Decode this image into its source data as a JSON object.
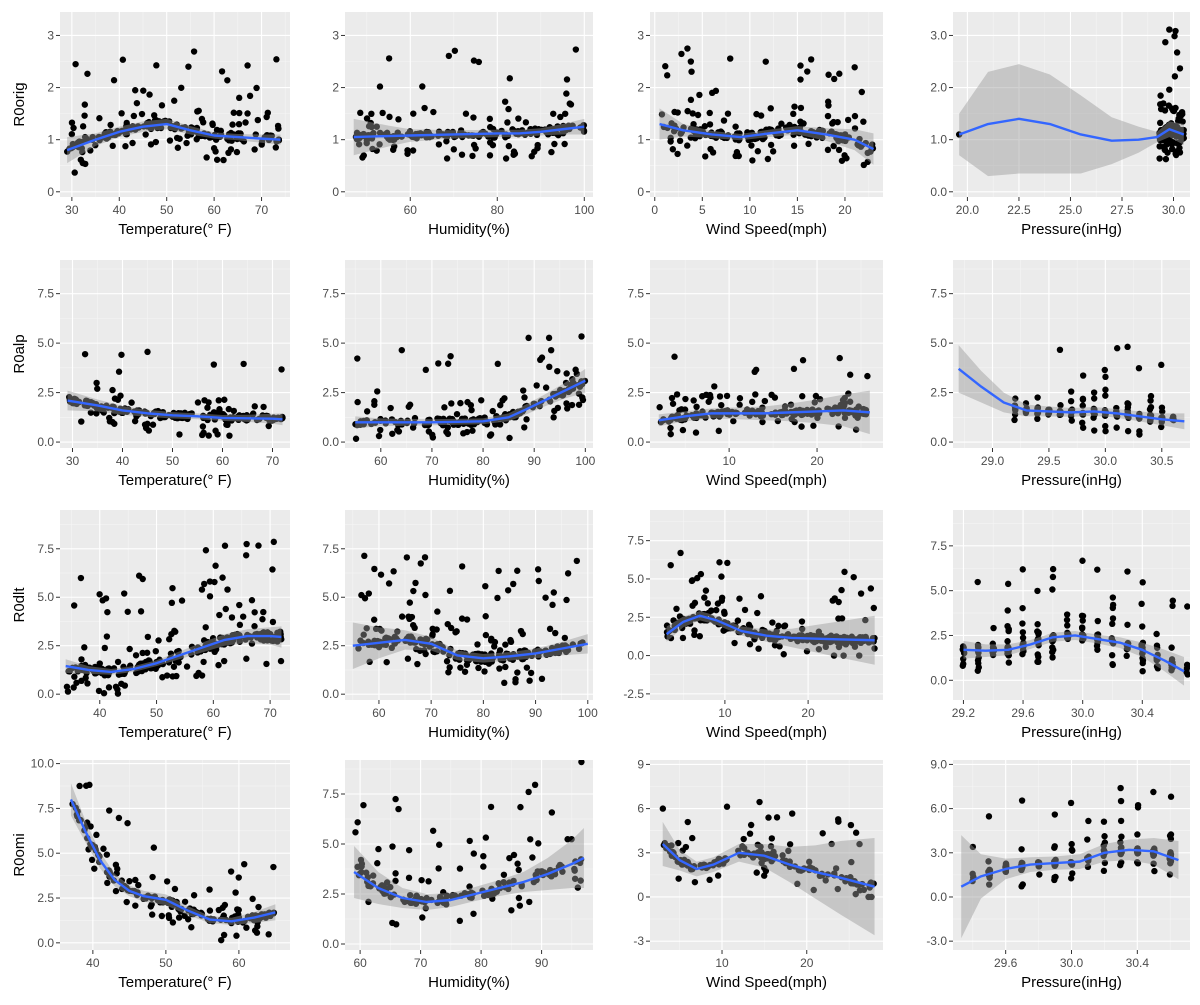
{
  "figure": {
    "row_labels": [
      "R0orig",
      "R0alp",
      "R0dlt",
      "R0omi"
    ],
    "col_labels": [
      "Temperature(° F)",
      "Humidity(%)",
      "Wind Speed(mph)",
      "Pressure(inHg)"
    ]
  },
  "chart_data": [
    {
      "type": "scatter",
      "row": 0,
      "col": 0,
      "xlabel": "Temperature(° F)",
      "ylabel": "R0orig",
      "xlim": [
        27.5,
        76
      ],
      "ylim": [
        -0.1,
        3.45
      ],
      "xticks": [
        30,
        40,
        50,
        60,
        70
      ],
      "yticks": [
        0,
        1,
        2,
        3
      ],
      "smooth": {
        "x": [
          29,
          35,
          40,
          45,
          50,
          55,
          60,
          65,
          70,
          74
        ],
        "y": [
          0.8,
          1.0,
          1.15,
          1.25,
          1.3,
          1.18,
          1.08,
          1.05,
          1.02,
          1.0
        ],
        "band": [
          0.25,
          0.12,
          0.1,
          0.1,
          0.1,
          0.08,
          0.06,
          0.06,
          0.08,
          0.1
        ]
      },
      "n": 220,
      "seed": 11,
      "xrange": [
        29,
        74
      ],
      "ycenter": 1.05,
      "spread": 0.9,
      "mode": "cluster"
    },
    {
      "type": "scatter",
      "row": 0,
      "col": 1,
      "xlabel": "Humidity(%)",
      "ylabel": "",
      "xlim": [
        45,
        102
      ],
      "ylim": [
        -0.1,
        3.45
      ],
      "xticks": [
        60,
        80,
        100
      ],
      "yticks": [
        0,
        1,
        2,
        3
      ],
      "smooth": {
        "x": [
          47,
          55,
          60,
          70,
          80,
          85,
          90,
          95,
          100
        ],
        "y": [
          1.05,
          1.07,
          1.08,
          1.1,
          1.12,
          1.12,
          1.15,
          1.2,
          1.25
        ],
        "band": [
          0.35,
          0.2,
          0.12,
          0.08,
          0.07,
          0.07,
          0.07,
          0.1,
          0.15
        ]
      },
      "n": 230,
      "seed": 23,
      "xrange": [
        47,
        100
      ],
      "ycenter": 1.05,
      "spread": 0.9,
      "mode": "cluster"
    },
    {
      "type": "scatter",
      "row": 0,
      "col": 2,
      "xlabel": "Wind Speed(mph)",
      "ylabel": "",
      "xlim": [
        -0.5,
        24
      ],
      "ylim": [
        -0.1,
        3.45
      ],
      "xticks": [
        0,
        5,
        10,
        15,
        20
      ],
      "yticks": [
        0,
        1,
        2,
        3
      ],
      "smooth": {
        "x": [
          0.5,
          3,
          6,
          9,
          12,
          15,
          18,
          21,
          23
        ],
        "y": [
          1.3,
          1.18,
          1.1,
          1.05,
          1.12,
          1.18,
          1.1,
          1.0,
          0.82
        ],
        "band": [
          0.3,
          0.12,
          0.07,
          0.06,
          0.07,
          0.08,
          0.12,
          0.2,
          0.3
        ]
      },
      "n": 230,
      "seed": 37,
      "xrange": [
        0.5,
        23
      ],
      "ycenter": 1.05,
      "spread": 0.9,
      "mode": "cluster"
    },
    {
      "type": "scatter",
      "row": 0,
      "col": 3,
      "xlabel": "Pressure(inHg)",
      "ylabel": "",
      "xlim": [
        19.3,
        30.8
      ],
      "ylim": [
        -0.1,
        3.45
      ],
      "xticks": [
        20,
        22.5,
        25,
        27.5,
        30
      ],
      "tickfmt": 1,
      "yticks": [
        0,
        1,
        2,
        3
      ],
      "smooth": {
        "x": [
          19.6,
          21,
          22.5,
          24,
          25.5,
          27,
          28.3,
          29.2,
          29.8,
          30.5
        ],
        "y": [
          1.1,
          1.3,
          1.4,
          1.3,
          1.1,
          0.98,
          1.0,
          1.05,
          1.2,
          1.1
        ],
        "band": [
          0.4,
          1.0,
          1.05,
          0.95,
          0.75,
          0.45,
          0.25,
          0.1,
          0.15,
          0.2
        ]
      },
      "n": 160,
      "seed": 41,
      "xrange": [
        29.3,
        30.5
      ],
      "ycenter": 1.1,
      "spread": 1.1,
      "mode": "cluster",
      "extra": [
        [
          19.6,
          1.1
        ]
      ]
    },
    {
      "type": "scatter",
      "row": 1,
      "col": 0,
      "xlabel": "Temperature(° F)",
      "ylabel": "R0alp",
      "xlim": [
        27.5,
        73.5
      ],
      "ylim": [
        -0.3,
        9.2
      ],
      "xticks": [
        30,
        40,
        50,
        60,
        70
      ],
      "yticks": [
        0,
        2.5,
        5,
        7.5
      ],
      "tickfmt": 1,
      "smooth": {
        "x": [
          29,
          35,
          40,
          45,
          50,
          55,
          60,
          65,
          70,
          72
        ],
        "y": [
          2.1,
          1.85,
          1.6,
          1.45,
          1.35,
          1.3,
          1.22,
          1.2,
          1.18,
          1.15
        ],
        "band": [
          0.5,
          0.3,
          0.22,
          0.18,
          0.16,
          0.15,
          0.15,
          0.18,
          0.25,
          0.3
        ]
      },
      "n": 200,
      "seed": 53,
      "xrange": [
        29,
        72
      ],
      "ycenter": 1.1,
      "spread": 1.8,
      "mode": "cluster"
    },
    {
      "type": "scatter",
      "row": 1,
      "col": 1,
      "xlabel": "Humidity(%)",
      "ylabel": "",
      "xlim": [
        53,
        101.5
      ],
      "ylim": [
        -0.3,
        9.2
      ],
      "xticks": [
        60,
        70,
        80,
        90,
        100
      ],
      "yticks": [
        0,
        2.5,
        5,
        7.5
      ],
      "tickfmt": 1,
      "smooth": {
        "x": [
          55,
          60,
          70,
          80,
          85,
          88,
          92,
          96,
          100
        ],
        "y": [
          1.0,
          1.0,
          1.0,
          1.05,
          1.25,
          1.6,
          2.1,
          2.6,
          3.1
        ],
        "band": [
          0.3,
          0.2,
          0.15,
          0.15,
          0.2,
          0.25,
          0.3,
          0.4,
          0.6
        ]
      },
      "n": 220,
      "seed": 61,
      "xrange": [
        55,
        100
      ],
      "ycenter": 1.05,
      "spread": 2.2,
      "mode": "humid"
    },
    {
      "type": "scatter",
      "row": 1,
      "col": 2,
      "xlabel": "Wind Speed(mph)",
      "ylabel": "",
      "xlim": [
        1,
        27.5
      ],
      "ylim": [
        -0.3,
        9.2
      ],
      "xticks": [
        10,
        20
      ],
      "yticks": [
        0,
        2.5,
        5,
        7.5
      ],
      "tickfmt": 1,
      "smooth": {
        "x": [
          2,
          5,
          8,
          11,
          14,
          17,
          20,
          23,
          26
        ],
        "y": [
          1.1,
          1.3,
          1.45,
          1.45,
          1.45,
          1.5,
          1.55,
          1.6,
          1.5
        ],
        "band": [
          0.3,
          0.25,
          0.25,
          0.3,
          0.35,
          0.45,
          0.6,
          0.8,
          1.1
        ]
      },
      "n": 190,
      "seed": 71,
      "xrange": [
        2,
        26
      ],
      "ycenter": 1.1,
      "spread": 1.8,
      "mode": "cluster"
    },
    {
      "type": "scatter",
      "row": 1,
      "col": 3,
      "xlabel": "Pressure(inHg)",
      "ylabel": "",
      "xlim": [
        28.65,
        30.75
      ],
      "ylim": [
        -0.3,
        9.2
      ],
      "xticks": [
        29,
        29.5,
        30,
        30.5
      ],
      "yticks": [
        0,
        2.5,
        5,
        7.5
      ],
      "tickfmt": 1,
      "smooth": {
        "x": [
          28.7,
          28.9,
          29.1,
          29.3,
          29.5,
          29.7,
          29.9,
          30.1,
          30.3,
          30.5,
          30.7
        ],
        "y": [
          3.7,
          2.8,
          2.0,
          1.6,
          1.55,
          1.5,
          1.55,
          1.45,
          1.3,
          1.15,
          1.05
        ],
        "band": [
          1.2,
          0.8,
          0.5,
          0.3,
          0.25,
          0.22,
          0.22,
          0.22,
          0.25,
          0.3,
          0.4
        ]
      },
      "n": 150,
      "seed": 83,
      "xrange": [
        29.2,
        30.6
      ],
      "ycenter": 1.3,
      "spread": 2.0,
      "mode": "press"
    },
    {
      "type": "scatter",
      "row": 2,
      "col": 0,
      "xlabel": "Temperature(° F)",
      "ylabel": "R0dlt",
      "xlim": [
        33,
        73.5
      ],
      "ylim": [
        -0.3,
        9.5
      ],
      "xticks": [
        40,
        50,
        60,
        70
      ],
      "yticks": [
        0,
        2.5,
        5,
        7.5
      ],
      "tickfmt": 1,
      "smooth": {
        "x": [
          34,
          38,
          42,
          46,
          50,
          54,
          58,
          62,
          66,
          70,
          72
        ],
        "y": [
          1.45,
          1.25,
          1.15,
          1.3,
          1.6,
          2.0,
          2.4,
          2.8,
          3.0,
          3.0,
          2.95
        ],
        "band": [
          0.35,
          0.2,
          0.15,
          0.15,
          0.15,
          0.2,
          0.25,
          0.3,
          0.35,
          0.45,
          0.55
        ]
      },
      "n": 260,
      "seed": 97,
      "xrange": [
        34,
        72
      ],
      "ycenter": 1.5,
      "spread": 2.8,
      "mode": "dlt"
    },
    {
      "type": "scatter",
      "row": 2,
      "col": 1,
      "xlabel": "Humidity(%)",
      "ylabel": "",
      "xlim": [
        53.5,
        101
      ],
      "ylim": [
        -0.3,
        9.5
      ],
      "xticks": [
        60,
        70,
        80,
        90,
        100
      ],
      "yticks": [
        0,
        2.5,
        5,
        7.5
      ],
      "tickfmt": 1,
      "smooth": {
        "x": [
          55,
          60,
          65,
          70,
          75,
          80,
          85,
          90,
          95,
          100
        ],
        "y": [
          2.5,
          2.65,
          2.8,
          2.6,
          2.0,
          1.85,
          1.95,
          2.1,
          2.35,
          2.6
        ],
        "band": [
          1.2,
          0.8,
          0.5,
          0.35,
          0.25,
          0.22,
          0.22,
          0.25,
          0.35,
          0.5
        ]
      },
      "n": 260,
      "seed": 103,
      "xrange": [
        56,
        99
      ],
      "ycenter": 1.6,
      "spread": 2.6,
      "mode": "cluster"
    },
    {
      "type": "scatter",
      "row": 2,
      "col": 2,
      "xlabel": "Wind Speed(mph)",
      "ylabel": "",
      "xlim": [
        1,
        29
      ],
      "ylim": [
        -2.9,
        9.5
      ],
      "xticks": [
        10,
        20
      ],
      "yticks": [
        -2.5,
        0,
        2.5,
        5,
        7.5
      ],
      "tickfmt": 1,
      "smooth": {
        "x": [
          3,
          5,
          7,
          9,
          12,
          15,
          18,
          21,
          24,
          28
        ],
        "y": [
          1.4,
          2.2,
          2.6,
          2.3,
          1.6,
          1.3,
          1.15,
          1.1,
          1.05,
          1.0
        ],
        "band": [
          0.5,
          0.35,
          0.3,
          0.3,
          0.3,
          0.4,
          0.6,
          0.9,
          1.2,
          1.6
        ]
      },
      "n": 260,
      "seed": 113,
      "xrange": [
        3,
        28
      ],
      "ycenter": 1.6,
      "spread": 2.6,
      "mode": "cluster"
    },
    {
      "type": "scatter",
      "row": 2,
      "col": 3,
      "xlabel": "Pressure(inHg)",
      "ylabel": "",
      "xlim": [
        29.13,
        30.72
      ],
      "ylim": [
        -1.1,
        9.5
      ],
      "xticks": [
        29.2,
        29.6,
        30,
        30.4
      ],
      "tickfmt": 1,
      "yticks": [
        0,
        2.5,
        5,
        7.5
      ],
      "smooth": {
        "x": [
          29.2,
          29.35,
          29.5,
          29.65,
          29.8,
          29.95,
          30.1,
          30.25,
          30.4,
          30.55,
          30.68
        ],
        "y": [
          1.7,
          1.65,
          1.7,
          2.0,
          2.4,
          2.5,
          2.3,
          2.1,
          1.7,
          1.1,
          0.5
        ],
        "band": [
          0.5,
          0.35,
          0.3,
          0.25,
          0.25,
          0.25,
          0.25,
          0.3,
          0.4,
          0.6,
          0.8
        ]
      },
      "n": 240,
      "seed": 127,
      "xrange": [
        29.2,
        30.68
      ],
      "ycenter": 1.4,
      "spread": 2.4,
      "mode": "press"
    },
    {
      "type": "scatter",
      "row": 3,
      "col": 0,
      "xlabel": "Temperature(° F)",
      "ylabel": "R0omi",
      "xlim": [
        35.5,
        67
      ],
      "ylim": [
        -0.4,
        10.2
      ],
      "xticks": [
        40,
        50,
        60
      ],
      "yticks": [
        0,
        2.5,
        5,
        7.5,
        10
      ],
      "tickfmt": 1,
      "smooth": {
        "x": [
          37,
          39,
          41,
          43,
          45,
          47,
          50,
          53,
          56,
          59,
          62,
          65
        ],
        "y": [
          8.0,
          6.2,
          4.6,
          3.5,
          2.9,
          2.6,
          2.4,
          1.8,
          1.3,
          1.2,
          1.4,
          1.7
        ],
        "band": [
          0.9,
          0.6,
          0.45,
          0.35,
          0.3,
          0.3,
          0.3,
          0.25,
          0.2,
          0.2,
          0.3,
          0.45
        ]
      },
      "n": 180,
      "seed": 131,
      "xrange": [
        37,
        65
      ],
      "ycenter": 1.4,
      "spread": 2.2,
      "mode": "omi"
    },
    {
      "type": "scatter",
      "row": 3,
      "col": 1,
      "xlabel": "Humidity(%)",
      "ylabel": "",
      "xlim": [
        57.5,
        98.5
      ],
      "ylim": [
        -0.3,
        9.2
      ],
      "xticks": [
        60,
        70,
        80,
        90
      ],
      "yticks": [
        0,
        2.5,
        5,
        7.5
      ],
      "tickfmt": 1,
      "smooth": {
        "x": [
          59,
          63,
          67,
          71,
          75,
          79,
          83,
          87,
          91,
          95,
          97
        ],
        "y": [
          3.6,
          2.8,
          2.3,
          2.1,
          2.2,
          2.5,
          2.8,
          3.1,
          3.5,
          4.0,
          4.3
        ],
        "band": [
          1.3,
          0.8,
          0.5,
          0.4,
          0.35,
          0.35,
          0.4,
          0.5,
          0.8,
          1.2,
          1.5
        ]
      },
      "n": 170,
      "seed": 149,
      "xrange": [
        59,
        97
      ],
      "ycenter": 1.6,
      "spread": 2.8,
      "mode": "cluster"
    },
    {
      "type": "scatter",
      "row": 3,
      "col": 2,
      "xlabel": "Wind Speed(mph)",
      "ylabel": "",
      "xlim": [
        1.5,
        29
      ],
      "ylim": [
        -3.6,
        9.3
      ],
      "xticks": [
        10,
        20
      ],
      "yticks": [
        -3,
        0,
        3,
        6,
        9
      ],
      "smooth": {
        "x": [
          3,
          5,
          7,
          9,
          12,
          15,
          18,
          21,
          24,
          28
        ],
        "y": [
          3.6,
          2.5,
          1.9,
          2.2,
          3.0,
          2.8,
          2.2,
          1.7,
          1.3,
          0.7
        ],
        "band": [
          1.5,
          0.7,
          0.5,
          0.5,
          0.6,
          0.8,
          1.2,
          1.8,
          2.5,
          3.3
        ]
      },
      "n": 170,
      "seed": 157,
      "xrange": [
        3,
        28
      ],
      "ycenter": 1.6,
      "spread": 2.6,
      "mode": "cluster"
    },
    {
      "type": "scatter",
      "row": 3,
      "col": 3,
      "xlabel": "Pressure(inHg)",
      "ylabel": "",
      "xlim": [
        29.28,
        30.72
      ],
      "ylim": [
        -3.6,
        9.3
      ],
      "xticks": [
        29.6,
        30,
        30.4
      ],
      "tickfmt": 1,
      "yticks": [
        -3,
        0,
        3,
        6,
        9
      ],
      "smooth": {
        "x": [
          29.33,
          29.45,
          29.6,
          29.75,
          29.9,
          30.05,
          30.2,
          30.35,
          30.5,
          30.65
        ],
        "y": [
          0.7,
          1.4,
          1.9,
          2.2,
          2.3,
          2.4,
          3.0,
          3.2,
          3.1,
          2.5
        ],
        "band": [
          3.5,
          1.5,
          0.7,
          0.5,
          0.45,
          0.5,
          0.6,
          0.7,
          0.9,
          1.3
        ]
      },
      "n": 170,
      "seed": 163,
      "xrange": [
        29.4,
        30.65
      ],
      "ycenter": 1.6,
      "spread": 2.6,
      "mode": "press"
    }
  ]
}
